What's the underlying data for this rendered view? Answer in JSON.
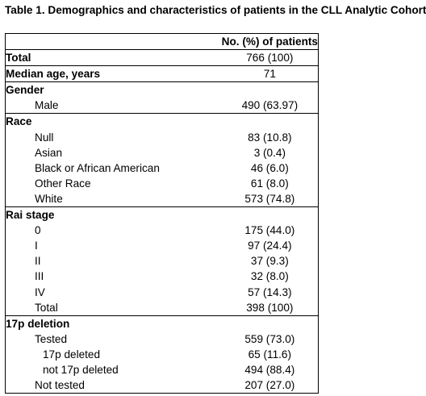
{
  "caption": "Table 1. Demographics and characteristics of patients in the CLL Analytic Cohort",
  "header": {
    "label": "",
    "value": "No. (%) of patients"
  },
  "total": {
    "label": "Total",
    "value": "766 (100)"
  },
  "median_age": {
    "label": "Median age, years",
    "value": "71"
  },
  "gender": {
    "title": "Gender",
    "rows": [
      {
        "label": "Male",
        "value": "490 (63.97)"
      }
    ]
  },
  "race": {
    "title": "Race",
    "rows": [
      {
        "label": "Null",
        "value": "83 (10.8)"
      },
      {
        "label": "Asian",
        "value": "3 (0.4)"
      },
      {
        "label": "Black or African American",
        "value": "46 (6.0)"
      },
      {
        "label": "Other Race",
        "value": "61 (8.0)"
      },
      {
        "label": "White",
        "value": "573 (74.8)"
      }
    ]
  },
  "rai": {
    "title": "Rai stage",
    "rows": [
      {
        "label": "0",
        "value": "175 (44.0)"
      },
      {
        "label": "I",
        "value": "97 (24.4)"
      },
      {
        "label": "II",
        "value": "37 (9.3)"
      },
      {
        "label": "III",
        "value": "32 (8.0)"
      },
      {
        "label": "IV",
        "value": "57 (14.3)"
      },
      {
        "label": "Total",
        "value": "398 (100)"
      }
    ]
  },
  "del17p": {
    "title": "17p deletion",
    "tested": {
      "label": "Tested",
      "value": "559 (73.0)"
    },
    "deleted": {
      "label": "17p deleted",
      "value": "65 (11.6)"
    },
    "not_deleted": {
      "label": "not 17p deleted",
      "value": "494 (88.4)"
    },
    "not_tested": {
      "label": "Not tested",
      "value": "207 (27.0)"
    }
  }
}
